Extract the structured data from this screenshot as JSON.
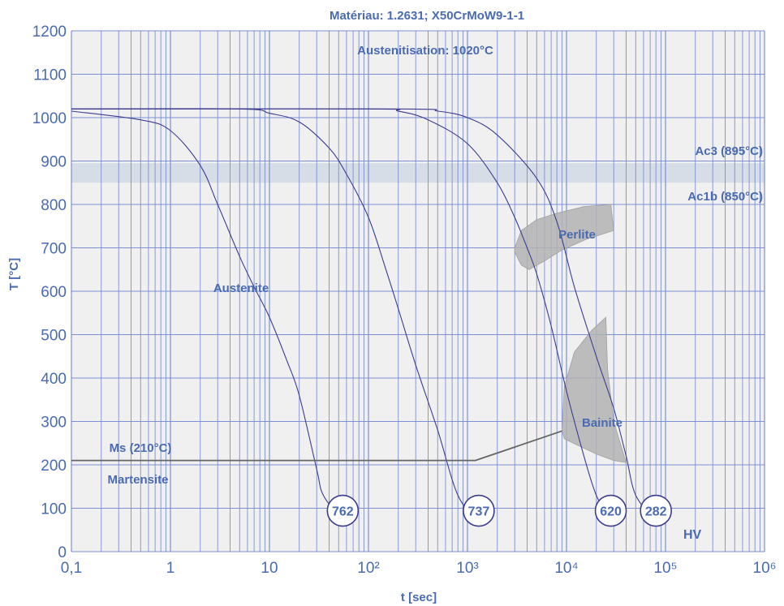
{
  "chart_data": {
    "type": "line",
    "title": "Matériau: 1.2631; X50CrMoW9-1-1",
    "xlabel": "t [sec]",
    "ylabel": "T [°C]",
    "x_scale": "log",
    "xlim": [
      0.1,
      1000000
    ],
    "ylim": [
      0,
      1200
    ],
    "x_ticks": [
      0.1,
      1,
      10,
      100,
      1000,
      10000,
      100000,
      1000000
    ],
    "x_tick_labels": [
      "0,1",
      "1",
      "10",
      "10²",
      "10³",
      "10⁴",
      "10⁵",
      "10⁶"
    ],
    "y_ticks": [
      0,
      100,
      200,
      300,
      400,
      500,
      600,
      700,
      800,
      900,
      1000,
      1100,
      1200
    ],
    "y_tick_labels": [
      "0",
      "100",
      "200",
      "300",
      "400",
      "500",
      "600",
      "700",
      "800",
      "900",
      "1000",
      "1100",
      "1200"
    ],
    "grid": true,
    "colors": {
      "text": "#4a6bb1",
      "grid": "#7b8fd1",
      "plot_bg": "#f0f0f0",
      "ac_band": "#d6dde6",
      "curve": "#3c3d8f",
      "region": "#b3b3b3",
      "ms_line": "#666666"
    },
    "annotations": {
      "austenitisation": "Austenitisation: 1020°C",
      "ac3": "Ac3 (895°C)",
      "ac1b": "Ac1b (850°C)",
      "austenite": "Austenite",
      "perlite": "Perlite",
      "bainite": "Bainite",
      "ms": "Ms (210°C)",
      "martensite": "Martensite",
      "hv_unit": "HV"
    },
    "ac_band": {
      "ac3": 895,
      "ac1b": 850
    },
    "ms_line": {
      "label": "Ms (210°C)",
      "points": [
        [
          0.1,
          210
        ],
        [
          1200,
          210
        ],
        [
          9000,
          278
        ]
      ]
    },
    "series": [
      {
        "hardness": "762",
        "points": [
          [
            0.1,
            1015
          ],
          [
            0.5,
            995
          ],
          [
            1,
            970
          ],
          [
            2,
            890
          ],
          [
            3,
            800
          ],
          [
            5,
            680
          ],
          [
            7,
            610
          ],
          [
            10,
            540
          ],
          [
            15,
            440
          ],
          [
            20,
            360
          ],
          [
            30,
            190
          ],
          [
            35,
            130
          ],
          [
            55,
            70
          ]
        ]
      },
      {
        "hardness": "737",
        "points": [
          [
            0.1,
            1020
          ],
          [
            5,
            1020
          ],
          [
            10,
            1010
          ],
          [
            20,
            990
          ],
          [
            40,
            930
          ],
          [
            60,
            870
          ],
          [
            100,
            770
          ],
          [
            150,
            650
          ],
          [
            200,
            560
          ],
          [
            300,
            430
          ],
          [
            500,
            280
          ],
          [
            800,
            130
          ],
          [
            1300,
            70
          ]
        ]
      },
      {
        "hardness": "620",
        "points": [
          [
            0.1,
            1020
          ],
          [
            100,
            1020
          ],
          [
            200,
            1015
          ],
          [
            400,
            995
          ],
          [
            1000,
            940
          ],
          [
            2000,
            850
          ],
          [
            3000,
            770
          ],
          [
            4000,
            700
          ],
          [
            5000,
            640
          ],
          [
            7000,
            520
          ],
          [
            10000,
            370
          ],
          [
            15000,
            220
          ],
          [
            20000,
            130
          ],
          [
            28000,
            70
          ]
        ]
      },
      {
        "hardness": "282",
        "points": [
          [
            0.1,
            1020
          ],
          [
            200,
            1020
          ],
          [
            500,
            1015
          ],
          [
            1000,
            1000
          ],
          [
            2000,
            960
          ],
          [
            5000,
            860
          ],
          [
            8000,
            760
          ],
          [
            12000,
            610
          ],
          [
            20000,
            450
          ],
          [
            30000,
            330
          ],
          [
            40000,
            220
          ],
          [
            50000,
            130
          ],
          [
            80000,
            70
          ]
        ]
      }
    ],
    "regions": [
      {
        "name": "Perlite",
        "points": [
          [
            3000,
            700
          ],
          [
            3500,
            740
          ],
          [
            5000,
            765
          ],
          [
            8000,
            780
          ],
          [
            15000,
            795
          ],
          [
            28000,
            800
          ],
          [
            30000,
            740
          ],
          [
            16000,
            720
          ],
          [
            9000,
            695
          ],
          [
            6000,
            670
          ],
          [
            4200,
            650
          ],
          [
            3500,
            660
          ],
          [
            3000,
            690
          ]
        ]
      },
      {
        "name": "Bainite",
        "points": [
          [
            9000,
            280
          ],
          [
            9500,
            380
          ],
          [
            12000,
            460
          ],
          [
            18000,
            510
          ],
          [
            25000,
            540
          ],
          [
            26000,
            420
          ],
          [
            30000,
            300
          ],
          [
            40000,
            205
          ],
          [
            30000,
            210
          ],
          [
            20000,
            225
          ],
          [
            13000,
            245
          ],
          [
            9500,
            260
          ]
        ]
      }
    ]
  }
}
